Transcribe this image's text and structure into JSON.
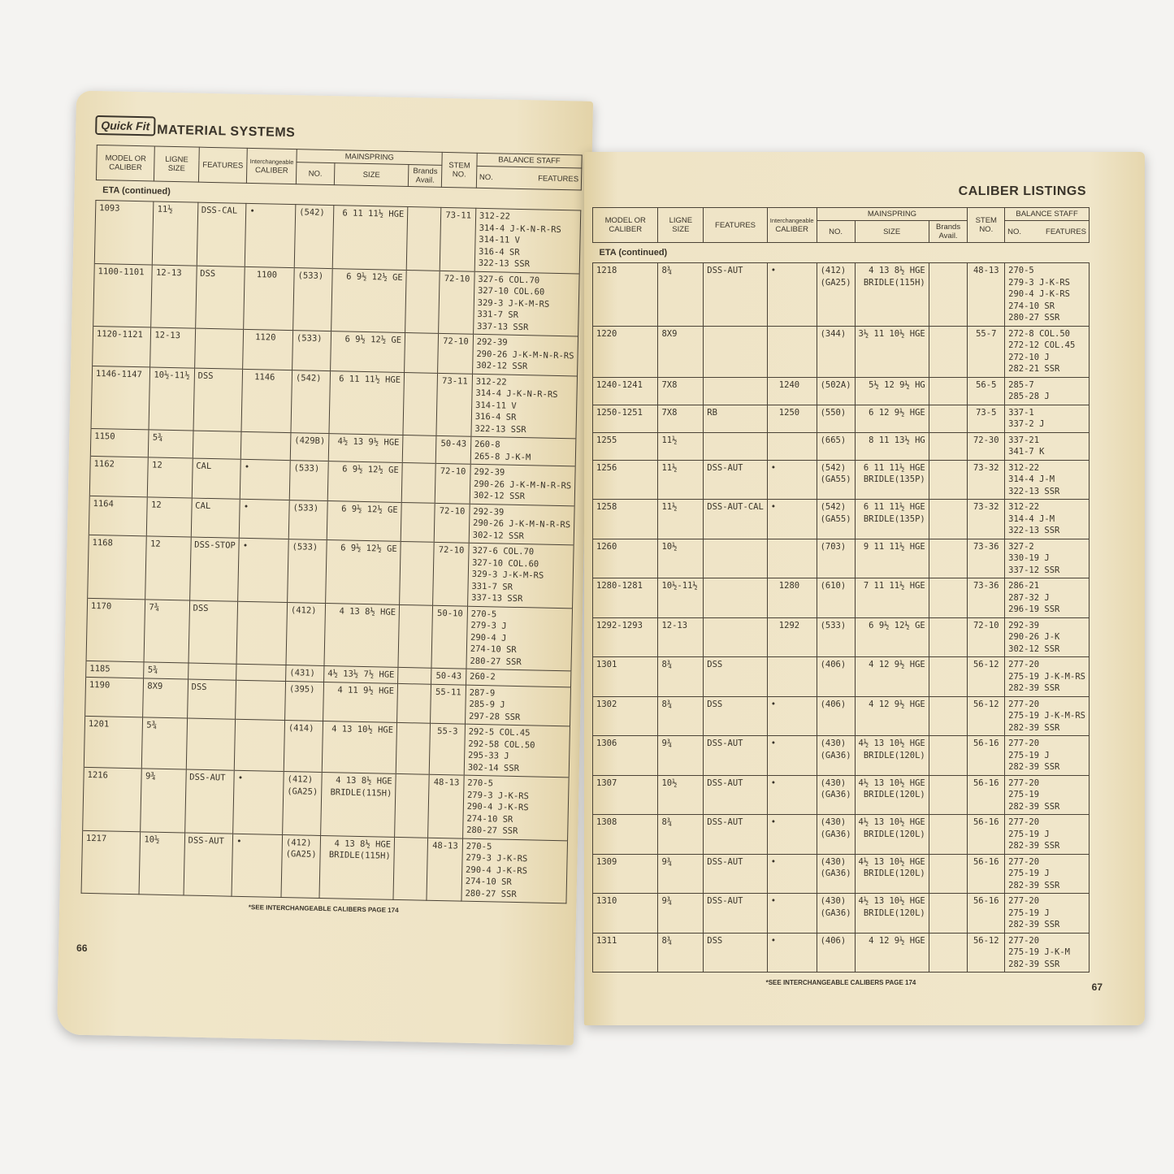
{
  "left_page": {
    "logo": "Quick Fit",
    "title": "MATERIAL SYSTEMS",
    "headers": {
      "model": "MODEL OR CALIBER",
      "ligne": "LIGNE SIZE",
      "features": "FEATURES",
      "interchangeable": "Interchangeable",
      "caliber": "CALIBER",
      "mainspring": "MAINSPRING",
      "ms_no": "NO.",
      "ms_size": "SIZE",
      "brands": "Brands Avail.",
      "stem": "STEM NO.",
      "balance_staff": "BALANCE STAFF",
      "bs_no": "NO.",
      "bs_features": "FEATURES"
    },
    "section": "ETA (continued)",
    "rows": [
      {
        "model": "1093",
        "ligne": "11½",
        "features": "DSS-CAL",
        "mark": "•",
        "ms_no": [
          "(542)"
        ],
        "ms_size": [
          "6 11 11½ HGE"
        ],
        "stem": "73-11",
        "staff": [
          "312-22",
          "314-4 J-K-N-R-RS",
          "314-11 V",
          "316-4 SR",
          "322-13 SSR"
        ]
      },
      {
        "model": "1100-1101",
        "ligne": "12-13",
        "features": "DSS",
        "caliber": "1100",
        "ms_no": [
          "(533)"
        ],
        "ms_size": [
          "6 9½ 12½ GE"
        ],
        "stem": "72-10",
        "staff": [
          "327-6 COL.70",
          "327-10 COL.60",
          "329-3 J-K-M-RS",
          "331-7 SR",
          "337-13 SSR"
        ]
      },
      {
        "model": "1120-1121",
        "ligne": "12-13",
        "caliber": "1120",
        "ms_no": [
          "(533)"
        ],
        "ms_size": [
          "6 9½ 12½ GE"
        ],
        "stem": "72-10",
        "staff": [
          "292-39",
          "290-26 J-K-M-N-R-RS",
          "302-12 SSR"
        ]
      },
      {
        "model": "1146-1147",
        "ligne": "10½-11½",
        "features": "DSS",
        "caliber": "1146",
        "ms_no": [
          "(542)"
        ],
        "ms_size": [
          "6 11 11½ HGE"
        ],
        "stem": "73-11",
        "staff": [
          "312-22",
          "314-4 J-K-N-R-RS",
          "314-11 V",
          "316-4 SR",
          "322-13 SSR"
        ]
      },
      {
        "model": "1150",
        "ligne": "5¾",
        "ms_no": [
          "(429B)"
        ],
        "ms_size": [
          "4½ 13 9½ HGE"
        ],
        "stem": "50-43",
        "staff": [
          "260-8",
          "265-8 J-K-M"
        ]
      },
      {
        "model": "1162",
        "ligne": "12",
        "features": "CAL",
        "mark": "•",
        "ms_no": [
          "(533)"
        ],
        "ms_size": [
          "6 9½ 12½ GE"
        ],
        "stem": "72-10",
        "staff": [
          "292-39",
          "290-26 J-K-M-N-R-RS",
          "302-12 SSR"
        ]
      },
      {
        "model": "1164",
        "ligne": "12",
        "features": "CAL",
        "mark": "•",
        "ms_no": [
          "(533)"
        ],
        "ms_size": [
          "6 9½ 12½ GE"
        ],
        "stem": "72-10",
        "staff": [
          "292-39",
          "290-26 J-K-M-N-R-RS",
          "302-12 SSR"
        ]
      },
      {
        "model": "1168",
        "ligne": "12",
        "features": "DSS-STOP",
        "mark": "•",
        "ms_no": [
          "(533)"
        ],
        "ms_size": [
          "6 9½ 12½ GE"
        ],
        "stem": "72-10",
        "staff": [
          "327-6 COL.70",
          "327-10 COL.60",
          "329-3 J-K-M-RS",
          "331-7 SR",
          "337-13 SSR"
        ]
      },
      {
        "model": "1170",
        "ligne": "7¾",
        "features": "DSS",
        "ms_no": [
          "(412)"
        ],
        "ms_size": [
          "4 13 8½ HGE"
        ],
        "stem": "50-10",
        "staff": [
          "270-5",
          "279-3 J",
          "290-4 J",
          "274-10 SR",
          "280-27 SSR"
        ]
      },
      {
        "model": "1185",
        "ligne": "5¾",
        "ms_no": [
          "(431)"
        ],
        "ms_size": [
          "4½ 13½ 7½ HGE"
        ],
        "stem": "50-43",
        "staff": [
          "260-2"
        ]
      },
      {
        "model": "1190",
        "ligne": "8X9",
        "features": "DSS",
        "ms_no": [
          "(395)"
        ],
        "ms_size": [
          "4 11 9½ HGE"
        ],
        "stem": "55-11",
        "staff": [
          "287-9",
          "285-9 J",
          "297-28 SSR"
        ]
      },
      {
        "model": "1201",
        "ligne": "5¾",
        "ms_no": [
          "(414)"
        ],
        "ms_size": [
          "4 13 10½ HGE"
        ],
        "stem": "55-3",
        "staff": [
          "292-5 COL.45",
          "292-58 COL.50",
          "295-33 J",
          "302-14 SSR"
        ]
      },
      {
        "model": "1216",
        "ligne": "9¾",
        "features": "DSS-AUT",
        "mark": "•",
        "ms_no": [
          "(412)",
          "(GA25)"
        ],
        "ms_size": [
          "4 13 8½ HGE",
          "BRIDLE(115H)"
        ],
        "stem": "48-13",
        "staff": [
          "270-5",
          "279-3 J-K-RS",
          "290-4 J-K-RS",
          "274-10 SR",
          "280-27 SSR"
        ]
      },
      {
        "model": "1217",
        "ligne": "10½",
        "features": "DSS-AUT",
        "mark": "•",
        "ms_no": [
          "(412)",
          "(GA25)"
        ],
        "ms_size": [
          "4 13 8½ HGE",
          "BRIDLE(115H)"
        ],
        "stem": "48-13",
        "staff": [
          "270-5",
          "279-3 J-K-RS",
          "290-4 J-K-RS",
          "274-10 SR",
          "280-27 SSR"
        ]
      }
    ],
    "footnote": "*SEE INTERCHANGEABLE CALIBERS PAGE 174",
    "page_number": "66"
  },
  "right_page": {
    "title": "CALIBER LISTINGS",
    "headers": {
      "model": "MODEL OR CALIBER",
      "ligne": "LIGNE SIZE",
      "features": "FEATURES",
      "interchangeable": "Interchangeable",
      "caliber": "CALIBER",
      "mainspring": "MAINSPRING",
      "ms_no": "NO.",
      "ms_size": "SIZE",
      "brands": "Brands Avail.",
      "stem": "STEM NO.",
      "balance_staff": "BALANCE STAFF",
      "bs_no": "NO.",
      "bs_features": "FEATURES"
    },
    "section": "ETA (continued)",
    "rows": [
      {
        "model": "1218",
        "ligne": "8¾",
        "features": "DSS-AUT",
        "mark": "•",
        "ms_no": [
          "(412)",
          "(GA25)"
        ],
        "ms_size": [
          "4 13 8½ HGE",
          "BRIDLE(115H)"
        ],
        "stem": "48-13",
        "staff": [
          "270-5",
          "279-3 J-K-RS",
          "290-4 J-K-RS",
          "274-10 SR",
          "280-27 SSR"
        ]
      },
      {
        "model": "1220",
        "ligne": "8X9",
        "ms_no": [
          "(344)"
        ],
        "ms_size": [
          "3½ 11 10½ HGE"
        ],
        "stem": "55-7",
        "staff": [
          "272-8 COL.50",
          "272-12 COL.45",
          "272-10 J",
          "282-21 SSR"
        ]
      },
      {
        "model": "1240-1241",
        "ligne": "7X8",
        "caliber": "1240",
        "ms_no": [
          "(502A)"
        ],
        "ms_size": [
          "5½ 12 9½ HG"
        ],
        "stem": "56-5",
        "staff": [
          "285-7",
          "285-28 J"
        ]
      },
      {
        "model": "1250-1251",
        "ligne": "7X8",
        "features": "RB",
        "caliber": "1250",
        "ms_no": [
          "(550)"
        ],
        "ms_size": [
          "6 12 9½ HGE"
        ],
        "stem": "73-5",
        "staff": [
          "337-1",
          "337-2 J"
        ]
      },
      {
        "model": "1255",
        "ligne": "11½",
        "ms_no": [
          "(665)"
        ],
        "ms_size": [
          "8 11 13½ HG"
        ],
        "stem": "72-30",
        "staff": [
          "337-21",
          "341-7 K"
        ]
      },
      {
        "model": "1256",
        "ligne": "11½",
        "features": "DSS-AUT",
        "mark": "•",
        "ms_no": [
          "(542)",
          "(GA55)"
        ],
        "ms_size": [
          "6 11 11½ HGE",
          "BRIDLE(135P)"
        ],
        "stem": "73-32",
        "staff": [
          "312-22",
          "314-4 J-M",
          "322-13 SSR"
        ]
      },
      {
        "model": "1258",
        "ligne": "11½",
        "features": "DSS-AUT-CAL",
        "mark": "•",
        "ms_no": [
          "(542)",
          "(GA55)"
        ],
        "ms_size": [
          "6 11 11½ HGE",
          "BRIDLE(135P)"
        ],
        "stem": "73-32",
        "staff": [
          "312-22",
          "314-4 J-M",
          "322-13 SSR"
        ]
      },
      {
        "model": "1260",
        "ligne": "10½",
        "ms_no": [
          "(703)"
        ],
        "ms_size": [
          "9 11 11½ HGE"
        ],
        "stem": "73-36",
        "staff": [
          "327-2",
          "330-19 J",
          "337-12 SSR"
        ]
      },
      {
        "model": "1280-1281",
        "ligne": "10½-11½",
        "caliber": "1280",
        "ms_no": [
          "(610)"
        ],
        "ms_size": [
          "7 11 11½ HGE"
        ],
        "stem": "73-36",
        "staff": [
          "286-21",
          "287-32 J",
          "296-19 SSR"
        ]
      },
      {
        "model": "1292-1293",
        "ligne": "12-13",
        "caliber": "1292",
        "ms_no": [
          "(533)"
        ],
        "ms_size": [
          "6 9½ 12½ GE"
        ],
        "stem": "72-10",
        "staff": [
          "292-39",
          "290-26 J-K",
          "302-12 SSR"
        ]
      },
      {
        "model": "1301",
        "ligne": "8¾",
        "features": "DSS",
        "ms_no": [
          "(406)"
        ],
        "ms_size": [
          "4 12 9½ HGE"
        ],
        "stem": "56-12",
        "staff": [
          "277-20",
          "275-19 J-K-M-RS",
          "282-39 SSR"
        ]
      },
      {
        "model": "1302",
        "ligne": "8¾",
        "features": "DSS",
        "mark": "•",
        "ms_no": [
          "(406)"
        ],
        "ms_size": [
          "4 12 9½ HGE"
        ],
        "stem": "56-12",
        "staff": [
          "277-20",
          "275-19 J-K-M-RS",
          "282-39 SSR"
        ]
      },
      {
        "model": "1306",
        "ligne": "9¾",
        "features": "DSS-AUT",
        "mark": "•",
        "ms_no": [
          "(430)",
          "(GA36)"
        ],
        "ms_size": [
          "4½ 13 10½ HGE",
          "BRIDLE(120L)"
        ],
        "stem": "56-16",
        "staff": [
          "277-20",
          "275-19 J",
          "282-39 SSR"
        ]
      },
      {
        "model": "1307",
        "ligne": "10½",
        "features": "DSS-AUT",
        "mark": "•",
        "ms_no": [
          "(430)",
          "(GA36)"
        ],
        "ms_size": [
          "4½ 13 10½ HGE",
          "BRIDLE(120L)"
        ],
        "stem": "56-16",
        "staff": [
          "277-20",
          "275-19",
          "282-39 SSR"
        ]
      },
      {
        "model": "1308",
        "ligne": "8¾",
        "features": "DSS-AUT",
        "mark": "•",
        "ms_no": [
          "(430)",
          "(GA36)"
        ],
        "ms_size": [
          "4½ 13 10½ HGE",
          "BRIDLE(120L)"
        ],
        "stem": "56-16",
        "staff": [
          "277-20",
          "275-19 J",
          "282-39 SSR"
        ]
      },
      {
        "model": "1309",
        "ligne": "9¾",
        "features": "DSS-AUT",
        "mark": "•",
        "ms_no": [
          "(430)",
          "(GA36)"
        ],
        "ms_size": [
          "4½ 13 10½ HGE",
          "BRIDLE(120L)"
        ],
        "stem": "56-16",
        "staff": [
          "277-20",
          "275-19 J",
          "282-39 SSR"
        ]
      },
      {
        "model": "1310",
        "ligne": "9¾",
        "features": "DSS-AUT",
        "mark": "•",
        "ms_no": [
          "(430)",
          "(GA36)"
        ],
        "ms_size": [
          "4½ 13 10½ HGE",
          "BRIDLE(120L)"
        ],
        "stem": "56-16",
        "staff": [
          "277-20",
          "275-19 J",
          "282-39 SSR"
        ]
      },
      {
        "model": "1311",
        "ligne": "8¾",
        "features": "DSS",
        "mark": "•",
        "ms_no": [
          "(406)"
        ],
        "ms_size": [
          "4 12 9½ HGE"
        ],
        "stem": "56-12",
        "staff": [
          "277-20",
          "275-19 J-K-M",
          "282-39 SSR"
        ]
      }
    ],
    "footnote": "*SEE INTERCHANGEABLE CALIBERS PAGE 174",
    "page_number": "67"
  }
}
